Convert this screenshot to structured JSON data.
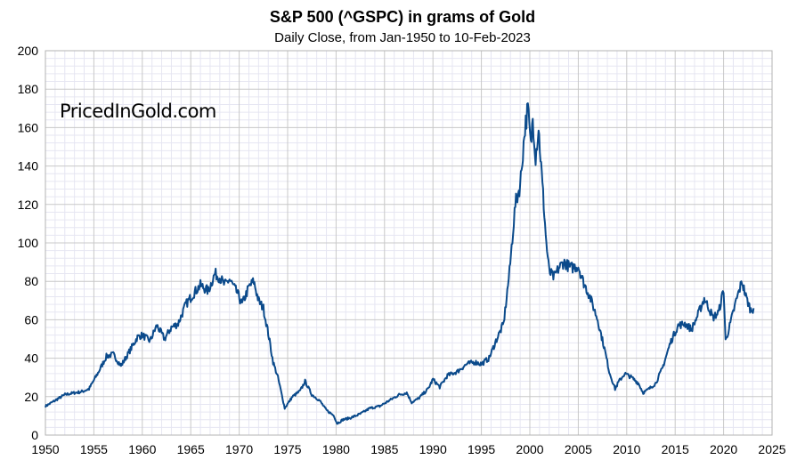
{
  "chart_data": {
    "type": "line",
    "title": "S&P 500 (^GSPC) in grams of Gold",
    "subtitle": "Daily Close, from Jan-1950 to 10-Feb-2023",
    "watermark": "PricedInGold.com",
    "xlabel": "",
    "ylabel": "",
    "xlim": [
      1950,
      2025
    ],
    "ylim": [
      0,
      200
    ],
    "x_ticks": [
      1950,
      1955,
      1960,
      1965,
      1970,
      1975,
      1980,
      1985,
      1990,
      1995,
      2000,
      2005,
      2010,
      2015,
      2020,
      2025
    ],
    "y_ticks": [
      0,
      20,
      40,
      60,
      80,
      100,
      120,
      140,
      160,
      180,
      200
    ],
    "grid": true,
    "legend": "none",
    "colors": {
      "line": "#0b4a8b",
      "major_grid": "#c8c8c8",
      "minor_grid": "#e6e6f2"
    },
    "series": [
      {
        "name": "",
        "x": [
          1950.0,
          1951.0,
          1952.0,
          1953.0,
          1953.7,
          1954.5,
          1955.5,
          1956.3,
          1957.0,
          1957.8,
          1958.5,
          1959.5,
          1960.0,
          1960.8,
          1961.5,
          1962.3,
          1963.0,
          1963.7,
          1964.5,
          1965.2,
          1966.0,
          1966.8,
          1967.5,
          1968.0,
          1968.5,
          1969.0,
          1969.8,
          1970.3,
          1971.0,
          1971.5,
          1972.0,
          1972.5,
          1973.0,
          1973.5,
          1974.0,
          1974.7,
          1975.5,
          1976.3,
          1976.8,
          1977.5,
          1978.3,
          1979.0,
          1979.8,
          1980.1,
          1980.7,
          1981.5,
          1982.5,
          1983.5,
          1984.5,
          1985.5,
          1986.5,
          1987.3,
          1987.8,
          1988.5,
          1989.5,
          1990.0,
          1990.7,
          1991.5,
          1992.5,
          1993.5,
          1994.3,
          1995.0,
          1995.8,
          1996.5,
          1997.3,
          1997.9,
          1998.5,
          1999.0,
          1999.5,
          1999.8,
          2000.1,
          2000.3,
          2000.6,
          2000.9,
          2001.3,
          2001.7,
          2002.0,
          2002.5,
          2003.0,
          2003.5,
          2004.2,
          2005.0,
          2005.5,
          2006.2,
          2007.0,
          2007.7,
          2008.2,
          2008.8,
          2009.2,
          2009.8,
          2010.5,
          2011.2,
          2011.7,
          2012.3,
          2013.0,
          2013.7,
          2014.5,
          2015.3,
          2016.0,
          2016.7,
          2017.3,
          2018.0,
          2018.5,
          2018.9,
          2019.5,
          2020.0,
          2020.2,
          2020.7,
          2021.3,
          2021.9,
          2022.3,
          2022.8,
          2023.1
        ],
        "values": [
          15,
          18,
          21,
          22,
          22.5,
          24,
          33,
          41,
          42,
          36,
          42,
          51,
          52,
          49,
          57,
          50,
          56,
          58,
          68,
          73,
          78,
          75,
          84,
          82,
          78,
          81,
          74,
          68,
          77,
          80,
          70,
          66,
          53,
          38,
          30,
          14,
          20,
          23,
          28,
          21,
          18,
          13,
          10,
          6,
          8,
          9,
          11,
          14,
          15,
          18,
          21,
          22,
          17,
          19,
          24,
          29,
          25,
          31,
          33,
          37,
          38,
          37,
          40,
          49,
          58,
          85,
          120,
          130,
          160,
          170,
          150,
          165,
          145,
          160,
          130,
          100,
          85,
          82,
          87,
          90,
          87,
          88,
          80,
          72,
          60,
          45,
          33,
          24,
          28,
          32,
          30,
          27,
          22,
          24,
          27,
          35,
          48,
          57,
          58,
          55,
          62,
          71,
          66,
          61,
          64,
          76,
          49,
          58,
          70,
          80,
          72,
          65,
          66
        ]
      }
    ]
  }
}
